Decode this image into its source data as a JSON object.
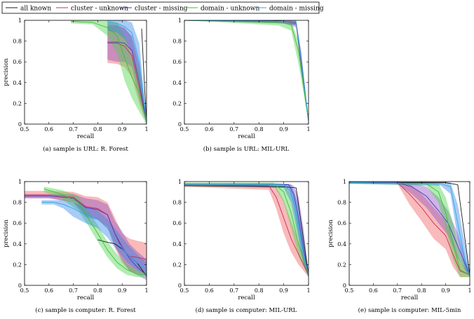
{
  "legend": {
    "entries": [
      {
        "label": "all known",
        "color": "#1a1a1a"
      },
      {
        "label": "cluster - unknown",
        "color": "#cc2e5e"
      },
      {
        "label": "cluster - missing",
        "color": "#4a3ab5"
      },
      {
        "label": "domain - unknown",
        "color": "#3bbf3b"
      },
      {
        "label": "domain - missing",
        "color": "#2ea7e8"
      }
    ]
  },
  "colors": {
    "all_known": "#1a1a1a",
    "cluster_unknown": "#cc2e5e",
    "cluster_missing": "#4a3ab5",
    "domain_unknown": "#3bbf3b",
    "domain_missing": "#2ea7e8",
    "band_cluster_unknown": "#ef5b5b",
    "band_cluster_missing": "#8a4fc0",
    "band_domain_unknown": "#47d147",
    "band_domain_missing": "#2f86e8"
  },
  "chart_data": [
    {
      "type": "line",
      "caption": "(a) sample is URL: R. Forest",
      "xlabel": "recall",
      "ylabel": "precision",
      "xlim": [
        0.5,
        1
      ],
      "ylim": [
        0,
        1
      ],
      "xticks": [
        "0.5",
        "0.6",
        "0.7",
        "0.8",
        "0.9",
        "1"
      ],
      "yticks": [
        "0",
        "0.2",
        "0.4",
        "0.6",
        "0.8",
        "1"
      ],
      "series": [
        {
          "name": "all known",
          "x": [
            0.98,
            0.99,
            1.0
          ],
          "y": [
            0.92,
            0.45,
            0.02
          ]
        },
        {
          "name": "cluster - unknown",
          "x": [
            0.84,
            0.88,
            0.91,
            0.94,
            0.97,
            1.0
          ],
          "y": [
            0.78,
            0.78,
            0.75,
            0.66,
            0.35,
            0.02
          ],
          "band_upper": [
            0.97,
            0.96,
            0.93,
            0.84,
            0.55,
            0.05
          ],
          "band_lower": [
            0.59,
            0.58,
            0.55,
            0.45,
            0.2,
            0.0
          ]
        },
        {
          "name": "cluster - missing",
          "x": [
            0.84,
            0.88,
            0.91,
            0.94,
            0.97,
            1.0
          ],
          "y": [
            0.79,
            0.79,
            0.78,
            0.71,
            0.4,
            0.02
          ],
          "band_upper": [
            0.95,
            0.95,
            0.92,
            0.85,
            0.58,
            0.05
          ],
          "band_lower": [
            0.62,
            0.6,
            0.6,
            0.55,
            0.25,
            0.0
          ]
        },
        {
          "name": "domain - unknown",
          "x": [
            0.69,
            0.78,
            0.84,
            0.88,
            0.91,
            0.94,
            0.97,
            1.0
          ],
          "y": [
            0.99,
            0.98,
            0.93,
            0.85,
            0.64,
            0.45,
            0.3,
            0.02
          ],
          "band_upper": [
            1.0,
            1.0,
            1.0,
            0.98,
            0.85,
            0.66,
            0.5,
            0.06
          ],
          "band_lower": [
            0.97,
            0.96,
            0.85,
            0.68,
            0.42,
            0.25,
            0.12,
            0.0
          ]
        },
        {
          "name": "domain - missing",
          "x": [
            0.84,
            0.88,
            0.91,
            0.94,
            0.97,
            1.0
          ],
          "y": [
            0.98,
            0.97,
            0.94,
            0.88,
            0.6,
            0.02
          ],
          "band_upper": [
            1.0,
            1.0,
            1.0,
            0.98,
            0.78,
            0.06
          ],
          "band_lower": [
            0.9,
            0.88,
            0.82,
            0.7,
            0.42,
            0.0
          ]
        }
      ]
    },
    {
      "type": "line",
      "caption": "(b) sample is URL: MIL-URL",
      "xlabel": "recall",
      "ylabel": "",
      "xlim": [
        0.5,
        1
      ],
      "ylim": [
        0,
        1
      ],
      "xticks": [
        "0.5",
        "0.6",
        "0.7",
        "0.8",
        "0.9",
        "1"
      ],
      "yticks": [
        "0",
        "0.2",
        "0.4",
        "0.6",
        "0.8",
        "1"
      ],
      "series": [
        {
          "name": "all known",
          "x": [
            0.5,
            0.85,
            0.95,
            0.97,
            1.0
          ],
          "y": [
            1.0,
            1.0,
            0.98,
            0.6,
            0.03
          ]
        },
        {
          "name": "cluster - unknown",
          "x": [
            0.5,
            0.9,
            0.95,
            0.97,
            1.0
          ],
          "y": [
            1.0,
            0.99,
            0.97,
            0.6,
            0.03
          ],
          "band_upper": [
            1.0,
            1.0,
            0.99,
            0.68,
            0.05
          ],
          "band_lower": [
            1.0,
            0.97,
            0.93,
            0.52,
            0.01
          ]
        },
        {
          "name": "cluster - missing",
          "x": [
            0.5,
            0.9,
            0.95,
            0.97,
            1.0
          ],
          "y": [
            1.0,
            0.99,
            0.98,
            0.62,
            0.03
          ],
          "band_upper": [
            1.0,
            1.0,
            1.0,
            0.7,
            0.05
          ],
          "band_lower": [
            1.0,
            0.97,
            0.95,
            0.54,
            0.01
          ]
        },
        {
          "name": "domain - unknown",
          "x": [
            0.5,
            0.88,
            0.93,
            0.96,
            1.0
          ],
          "y": [
            1.0,
            0.98,
            0.96,
            0.7,
            0.03
          ],
          "band_upper": [
            1.0,
            1.0,
            0.99,
            0.8,
            0.05
          ],
          "band_lower": [
            1.0,
            0.95,
            0.9,
            0.58,
            0.01
          ]
        },
        {
          "name": "domain - missing",
          "x": [
            0.5,
            0.9,
            0.95,
            0.97,
            1.0
          ],
          "y": [
            1.0,
            0.99,
            0.98,
            0.62,
            0.03
          ],
          "band_upper": [
            1.0,
            1.0,
            1.0,
            0.7,
            0.05
          ],
          "band_lower": [
            1.0,
            0.97,
            0.95,
            0.54,
            0.01
          ]
        }
      ]
    },
    {
      "type": "line",
      "caption": "(c) sample is computer: R. Forest",
      "xlabel": "recall",
      "ylabel": "precision",
      "xlim": [
        0.5,
        1
      ],
      "ylim": [
        0,
        1
      ],
      "xticks": [
        "0.5",
        "0.6",
        "0.7",
        "0.8",
        "0.9",
        "1"
      ],
      "yticks": [
        "0",
        "0.2",
        "0.4",
        "0.6",
        "0.8",
        "1"
      ],
      "series": [
        {
          "name": "all known",
          "x": [
            0.8,
            0.83,
            0.87,
            0.9,
            0.93,
            0.96,
            1.0
          ],
          "y": [
            0.44,
            0.42,
            0.4,
            0.35,
            0.28,
            0.22,
            0.09
          ]
        },
        {
          "name": "cluster - unknown",
          "x": [
            0.5,
            0.6,
            0.7,
            0.75,
            0.8,
            0.84,
            0.87,
            0.9,
            0.93,
            0.96,
            1.0
          ],
          "y": [
            0.87,
            0.87,
            0.85,
            0.76,
            0.74,
            0.68,
            0.5,
            0.35,
            0.28,
            0.27,
            0.25
          ],
          "band_upper": [
            0.91,
            0.91,
            0.9,
            0.86,
            0.85,
            0.8,
            0.65,
            0.5,
            0.45,
            0.43,
            0.41
          ],
          "band_lower": [
            0.84,
            0.84,
            0.8,
            0.68,
            0.64,
            0.56,
            0.36,
            0.22,
            0.14,
            0.12,
            0.1
          ]
        },
        {
          "name": "cluster - missing",
          "x": [
            0.5,
            0.6,
            0.7,
            0.75,
            0.8,
            0.84,
            0.87,
            0.9,
            0.93,
            0.96,
            1.0
          ],
          "y": [
            0.86,
            0.86,
            0.84,
            0.75,
            0.73,
            0.68,
            0.5,
            0.37,
            0.26,
            0.18,
            0.1
          ],
          "band_upper": [
            0.88,
            0.88,
            0.88,
            0.84,
            0.82,
            0.78,
            0.62,
            0.52,
            0.4,
            0.33,
            0.25
          ],
          "band_lower": [
            0.84,
            0.84,
            0.8,
            0.66,
            0.63,
            0.56,
            0.38,
            0.24,
            0.14,
            0.1,
            0.05
          ]
        },
        {
          "name": "domain - unknown",
          "x": [
            0.58,
            0.65,
            0.72,
            0.76,
            0.8,
            0.84,
            0.88,
            0.92,
            0.96,
            1.0
          ],
          "y": [
            0.93,
            0.88,
            0.8,
            0.65,
            0.5,
            0.34,
            0.22,
            0.15,
            0.11,
            0.1
          ],
          "band_upper": [
            0.95,
            0.92,
            0.86,
            0.72,
            0.58,
            0.42,
            0.3,
            0.2,
            0.15,
            0.12
          ],
          "band_lower": [
            0.9,
            0.84,
            0.72,
            0.58,
            0.42,
            0.27,
            0.16,
            0.1,
            0.08,
            0.08
          ]
        },
        {
          "name": "domain - missing",
          "x": [
            0.57,
            0.62,
            0.66,
            0.7,
            0.75,
            0.8,
            0.84,
            0.88,
            0.92,
            0.96,
            1.0
          ],
          "y": [
            0.8,
            0.8,
            0.78,
            0.74,
            0.68,
            0.64,
            0.55,
            0.42,
            0.3,
            0.22,
            0.15
          ],
          "band_upper": [
            0.82,
            0.82,
            0.82,
            0.8,
            0.76,
            0.72,
            0.64,
            0.52,
            0.4,
            0.3,
            0.22
          ],
          "band_lower": [
            0.78,
            0.78,
            0.74,
            0.66,
            0.6,
            0.55,
            0.46,
            0.34,
            0.22,
            0.15,
            0.1
          ]
        }
      ]
    },
    {
      "type": "line",
      "caption": "(d) sample is computer: MIL-URL",
      "xlabel": "recall",
      "ylabel": "",
      "xlim": [
        0.5,
        1
      ],
      "ylim": [
        0,
        1
      ],
      "xticks": [
        "0.5",
        "0.6",
        "0.7",
        "0.8",
        "0.9",
        "1"
      ],
      "yticks": [
        "0",
        "0.2",
        "0.4",
        "0.6",
        "0.8",
        "1"
      ],
      "series": [
        {
          "name": "all known",
          "x": [
            0.5,
            0.9,
            0.95,
            1.0
          ],
          "y": [
            0.96,
            0.95,
            0.94,
            0.1
          ]
        },
        {
          "name": "cluster - unknown",
          "x": [
            0.5,
            0.84,
            0.87,
            0.9,
            0.93,
            0.96,
            1.0
          ],
          "y": [
            0.97,
            0.96,
            0.85,
            0.65,
            0.45,
            0.3,
            0.1
          ],
          "band_upper": [
            0.98,
            0.98,
            0.95,
            0.82,
            0.62,
            0.42,
            0.12
          ],
          "band_lower": [
            0.95,
            0.92,
            0.74,
            0.5,
            0.32,
            0.2,
            0.08
          ]
        },
        {
          "name": "cluster - missing",
          "x": [
            0.5,
            0.92,
            0.94,
            0.96,
            0.98,
            1.0
          ],
          "y": [
            0.97,
            0.97,
            0.88,
            0.65,
            0.35,
            0.1
          ],
          "band_upper": [
            0.98,
            0.98,
            0.96,
            0.85,
            0.55,
            0.12
          ],
          "band_lower": [
            0.96,
            0.94,
            0.78,
            0.48,
            0.22,
            0.08
          ]
        },
        {
          "name": "domain - unknown",
          "x": [
            0.5,
            0.86,
            0.9,
            0.93,
            0.96,
            1.0
          ],
          "y": [
            0.98,
            0.98,
            0.9,
            0.7,
            0.4,
            0.1
          ],
          "band_upper": [
            0.99,
            0.99,
            0.98,
            0.88,
            0.6,
            0.12
          ],
          "band_lower": [
            0.97,
            0.96,
            0.8,
            0.55,
            0.28,
            0.08
          ]
        },
        {
          "name": "domain - missing",
          "x": [
            0.5,
            0.9,
            0.93,
            0.96,
            0.98,
            1.0
          ],
          "y": [
            0.97,
            0.97,
            0.9,
            0.6,
            0.3,
            0.1
          ],
          "band_upper": [
            0.98,
            0.98,
            0.97,
            0.78,
            0.48,
            0.12
          ],
          "band_lower": [
            0.96,
            0.94,
            0.8,
            0.45,
            0.2,
            0.08
          ]
        }
      ]
    },
    {
      "type": "line",
      "caption": "(e) sample is computer: MIL-5min",
      "xlabel": "recall",
      "ylabel": "precision",
      "xlim": [
        0.5,
        1
      ],
      "ylim": [
        0,
        1
      ],
      "xticks": [
        "0.5",
        "0.6",
        "0.7",
        "0.8",
        "0.9",
        "1"
      ],
      "yticks": [
        "0",
        "0.2",
        "0.4",
        "0.6",
        "0.8",
        "1"
      ],
      "series": [
        {
          "name": "all known",
          "x": [
            0.5,
            0.9,
            0.95,
            1.0
          ],
          "y": [
            0.99,
            0.99,
            0.97,
            0.1
          ]
        },
        {
          "name": "cluster - unknown",
          "x": [
            0.5,
            0.7,
            0.75,
            0.8,
            0.85,
            0.9,
            0.93,
            0.96,
            1.0
          ],
          "y": [
            0.99,
            0.99,
            0.88,
            0.75,
            0.6,
            0.48,
            0.3,
            0.14,
            0.1
          ],
          "band_upper": [
            1.0,
            1.0,
            0.98,
            0.88,
            0.75,
            0.62,
            0.45,
            0.22,
            0.12
          ],
          "band_lower": [
            0.98,
            0.98,
            0.78,
            0.62,
            0.45,
            0.35,
            0.18,
            0.08,
            0.08
          ]
        },
        {
          "name": "cluster - missing",
          "x": [
            0.5,
            0.7,
            0.76,
            0.82,
            0.87,
            0.91,
            0.95,
            1.0
          ],
          "y": [
            0.99,
            0.99,
            0.95,
            0.86,
            0.72,
            0.6,
            0.38,
            0.1
          ],
          "band_upper": [
            1.0,
            1.0,
            0.99,
            0.95,
            0.85,
            0.72,
            0.5,
            0.12
          ],
          "band_lower": [
            0.98,
            0.98,
            0.88,
            0.75,
            0.6,
            0.48,
            0.26,
            0.08
          ]
        },
        {
          "name": "domain - unknown",
          "x": [
            0.5,
            0.82,
            0.87,
            0.9,
            0.93,
            0.96,
            1.0
          ],
          "y": [
            0.99,
            0.98,
            0.9,
            0.7,
            0.4,
            0.15,
            0.1
          ],
          "band_upper": [
            1.0,
            1.0,
            0.98,
            0.85,
            0.6,
            0.3,
            0.12
          ],
          "band_lower": [
            0.98,
            0.96,
            0.8,
            0.55,
            0.25,
            0.08,
            0.08
          ]
        },
        {
          "name": "domain - missing",
          "x": [
            0.5,
            0.88,
            0.92,
            0.95,
            0.98,
            1.0
          ],
          "y": [
            0.99,
            0.98,
            0.95,
            0.6,
            0.25,
            0.1
          ],
          "band_upper": [
            1.0,
            1.0,
            0.99,
            0.78,
            0.4,
            0.12
          ],
          "band_lower": [
            0.98,
            0.96,
            0.88,
            0.45,
            0.15,
            0.08
          ]
        }
      ]
    }
  ]
}
